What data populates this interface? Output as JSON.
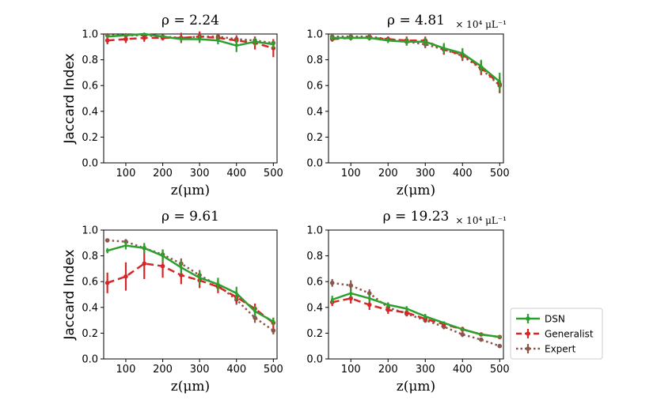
{
  "colors": {
    "dsn": "#2ca02c",
    "generalist": "#d62728",
    "expert": "#8c564b",
    "axis": "#000000"
  },
  "legend": {
    "entries": [
      "DSN",
      "Generalist",
      "Expert"
    ],
    "placement": "right, beside bottom-right panel"
  },
  "chart_data": [
    {
      "type": "line",
      "title": "ρ = 2.24",
      "scale_label": "",
      "xlabel": "z(μm)",
      "ylabel": "Jaccard Index",
      "xlim": [
        40,
        510
      ],
      "ylim": [
        0,
        1.0
      ],
      "xticks": [
        100,
        200,
        300,
        400,
        500
      ],
      "yticks": [
        "0.0",
        "0.2",
        "0.4",
        "0.6",
        "0.8",
        "1.0"
      ],
      "x": [
        50,
        100,
        150,
        200,
        250,
        300,
        350,
        400,
        450,
        500
      ],
      "series": [
        {
          "name": "DSN",
          "values": [
            0.98,
            0.99,
            1.0,
            0.98,
            0.96,
            0.96,
            0.95,
            0.91,
            0.94,
            0.92
          ],
          "err": [
            0.01,
            0.01,
            0.01,
            0.01,
            0.02,
            0.03,
            0.03,
            0.05,
            0.03,
            0.03
          ]
        },
        {
          "name": "Generalist",
          "values": [
            0.95,
            0.96,
            0.97,
            0.97,
            0.97,
            0.98,
            0.97,
            0.95,
            0.93,
            0.89
          ],
          "err": [
            0.03,
            0.03,
            0.03,
            0.02,
            0.04,
            0.04,
            0.03,
            0.03,
            0.05,
            0.07
          ]
        },
        {
          "name": "Expert",
          "values": [
            0.99,
            0.99,
            0.99,
            0.98,
            0.97,
            0.98,
            0.98,
            0.96,
            0.95,
            0.93
          ],
          "err": [
            0.01,
            0.01,
            0.01,
            0.01,
            0.02,
            0.03,
            0.02,
            0.03,
            0.03,
            0.03
          ]
        }
      ]
    },
    {
      "type": "line",
      "title": "ρ = 4.81",
      "scale_label": "× 10⁴ μL⁻¹",
      "xlabel": "z(μm)",
      "ylabel": "",
      "xlim": [
        40,
        510
      ],
      "ylim": [
        0,
        1.0
      ],
      "xticks": [
        100,
        200,
        300,
        400,
        500
      ],
      "yticks": [
        "0.0",
        "0.2",
        "0.4",
        "0.6",
        "0.8",
        "1.0"
      ],
      "x": [
        50,
        100,
        150,
        200,
        250,
        300,
        350,
        400,
        450,
        500
      ],
      "series": [
        {
          "name": "DSN",
          "values": [
            0.97,
            0.97,
            0.97,
            0.95,
            0.94,
            0.94,
            0.89,
            0.85,
            0.75,
            0.63
          ],
          "err": [
            0.02,
            0.02,
            0.02,
            0.02,
            0.03,
            0.03,
            0.04,
            0.04,
            0.05,
            0.07
          ]
        },
        {
          "name": "Generalist",
          "values": [
            0.96,
            0.97,
            0.97,
            0.96,
            0.95,
            0.95,
            0.88,
            0.84,
            0.74,
            0.61
          ],
          "err": [
            0.02,
            0.02,
            0.02,
            0.02,
            0.03,
            0.03,
            0.04,
            0.04,
            0.05,
            0.06
          ]
        },
        {
          "name": "Expert",
          "values": [
            0.98,
            0.98,
            0.98,
            0.96,
            0.94,
            0.92,
            0.88,
            0.83,
            0.73,
            0.6
          ],
          "err": [
            0.02,
            0.02,
            0.02,
            0.02,
            0.03,
            0.03,
            0.04,
            0.04,
            0.05,
            0.06
          ]
        }
      ]
    },
    {
      "type": "line",
      "title": "ρ = 9.61",
      "scale_label": "",
      "xlabel": "z(μm)",
      "ylabel": "Jaccard Index",
      "xlim": [
        40,
        510
      ],
      "ylim": [
        0,
        1.0
      ],
      "xticks": [
        100,
        200,
        300,
        400,
        500
      ],
      "yticks": [
        "0.0",
        "0.2",
        "0.4",
        "0.6",
        "0.8",
        "1.0"
      ],
      "x": [
        50,
        100,
        150,
        200,
        250,
        300,
        350,
        400,
        450,
        500
      ],
      "series": [
        {
          "name": "DSN",
          "values": [
            0.84,
            0.88,
            0.86,
            0.8,
            0.71,
            0.63,
            0.58,
            0.51,
            0.37,
            0.29
          ],
          "err": [
            0.02,
            0.03,
            0.04,
            0.05,
            0.05,
            0.05,
            0.05,
            0.05,
            0.04,
            0.03
          ]
        },
        {
          "name": "Generalist",
          "values": [
            0.59,
            0.64,
            0.74,
            0.72,
            0.65,
            0.61,
            0.56,
            0.48,
            0.39,
            0.28
          ],
          "err": [
            0.08,
            0.11,
            0.12,
            0.09,
            0.07,
            0.06,
            0.05,
            0.05,
            0.04,
            0.04
          ]
        },
        {
          "name": "Expert",
          "values": [
            0.92,
            0.91,
            0.86,
            0.81,
            0.74,
            0.65,
            0.57,
            0.46,
            0.32,
            0.22
          ],
          "err": [
            0.01,
            0.02,
            0.03,
            0.04,
            0.04,
            0.04,
            0.04,
            0.04,
            0.04,
            0.03
          ]
        }
      ]
    },
    {
      "type": "line",
      "title": "ρ = 19.23",
      "scale_label": "× 10⁴ μL⁻¹",
      "xlabel": "z(μm)",
      "ylabel": "",
      "xlim": [
        40,
        510
      ],
      "ylim": [
        0,
        1.0
      ],
      "xticks": [
        100,
        200,
        300,
        400,
        500
      ],
      "yticks": [
        "0.0",
        "0.2",
        "0.4",
        "0.6",
        "0.8",
        "1.0"
      ],
      "x": [
        50,
        100,
        150,
        200,
        250,
        300,
        350,
        400,
        450,
        500
      ],
      "series": [
        {
          "name": "DSN",
          "values": [
            0.46,
            0.51,
            0.47,
            0.42,
            0.39,
            0.33,
            0.28,
            0.23,
            0.19,
            0.17
          ],
          "err": [
            0.03,
            0.03,
            0.03,
            0.02,
            0.02,
            0.02,
            0.01,
            0.01,
            0.01,
            0.01
          ]
        },
        {
          "name": "Generalist",
          "values": [
            0.44,
            0.47,
            0.42,
            0.38,
            0.36,
            0.31,
            0.27,
            0.23,
            0.19,
            0.17
          ],
          "err": [
            0.03,
            0.04,
            0.04,
            0.03,
            0.03,
            0.02,
            0.02,
            0.02,
            0.01,
            0.01
          ]
        },
        {
          "name": "Expert",
          "values": [
            0.59,
            0.57,
            0.51,
            0.4,
            0.35,
            0.3,
            0.25,
            0.19,
            0.15,
            0.1
          ],
          "err": [
            0.03,
            0.04,
            0.03,
            0.03,
            0.02,
            0.02,
            0.02,
            0.02,
            0.01,
            0.01
          ]
        }
      ]
    }
  ]
}
